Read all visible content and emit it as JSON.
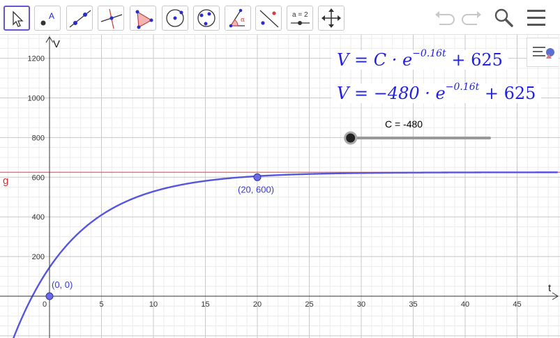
{
  "toolbar": {
    "tools": [
      {
        "name": "move-tool"
      },
      {
        "name": "point-tool",
        "label": "A"
      },
      {
        "name": "line-tool"
      },
      {
        "name": "perpendicular-line-tool"
      },
      {
        "name": "polygon-tool"
      },
      {
        "name": "circle-center-point-tool"
      },
      {
        "name": "conic-tool"
      },
      {
        "name": "angle-tool",
        "label": "α"
      },
      {
        "name": "reflect-tool"
      },
      {
        "name": "slider-tool",
        "label": "a = 2"
      },
      {
        "name": "move-graphics-tool"
      }
    ],
    "right": [
      "undo-icon",
      "redo-icon",
      "search-icon",
      "menu-icon"
    ]
  },
  "graph": {
    "x_axis_label": "t",
    "y_axis_label": "V",
    "x_ticks": [
      "0",
      "5",
      "10",
      "15",
      "20",
      "25",
      "30",
      "35",
      "40",
      "45"
    ],
    "y_ticks": [
      "200",
      "400",
      "600",
      "800",
      "1000",
      "1200"
    ],
    "line_label": "g",
    "points": [
      {
        "label": "(0, 0)",
        "x": 0,
        "y": 0
      },
      {
        "label": "(20, 600)",
        "x": 20,
        "y": 600
      }
    ],
    "asymptote_y": 625,
    "curve": {
      "C": -480,
      "k": 0.16,
      "b": 625
    },
    "curve_color": "#5555e0",
    "line_color": "#e05050"
  },
  "equations": {
    "eq1": {
      "lhs": "V = C · e",
      "exp": "−0.16t",
      "rhs": "+ 625"
    },
    "eq2": {
      "lhs": "V = −480 · e",
      "exp": "−0.16t",
      "rhs": "+ 625"
    }
  },
  "slider": {
    "label": "C = -480",
    "min": -500,
    "max": 1000,
    "value": -480
  }
}
